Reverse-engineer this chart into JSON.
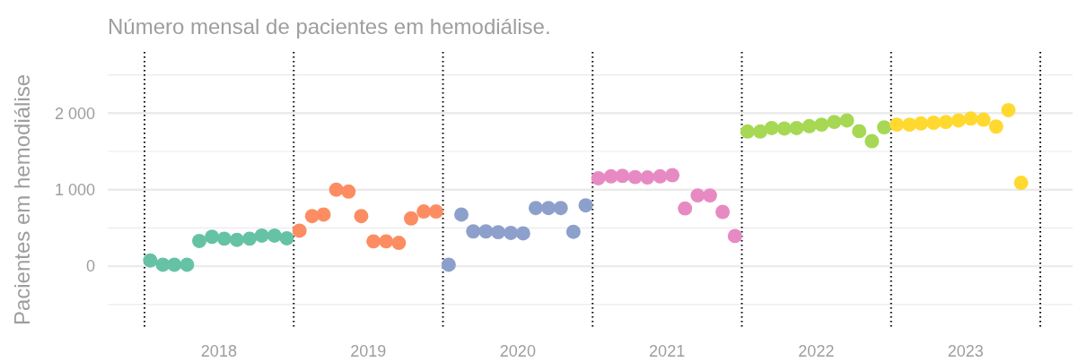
{
  "chart_data": {
    "type": "scatter",
    "title": "Número mensal de pacientes em hemodiálise.",
    "ylabel": "Pacientes em hemodiálise",
    "marker": "circle",
    "grid": "y",
    "xlim": [
      "2017-10-03",
      "2024-03-20"
    ],
    "ylim": [
      -830,
      2800
    ],
    "xticks": [
      {
        "value": "2018-07-02",
        "label": "2018"
      },
      {
        "value": "2019-07-02",
        "label": "2019"
      },
      {
        "value": "2020-07-02",
        "label": "2020"
      },
      {
        "value": "2021-07-02",
        "label": "2021"
      },
      {
        "value": "2022-07-02",
        "label": "2022"
      },
      {
        "value": "2023-07-02",
        "label": "2023"
      }
    ],
    "yticks": [
      {
        "value": -500,
        "label": null
      },
      0,
      {
        "value": 500,
        "label": null
      },
      {
        "value": 1000,
        "label": "1 000"
      },
      {
        "value": 1500,
        "label": null
      },
      {
        "value": 2000,
        "label": "2 000"
      },
      {
        "value": 2500,
        "label": null
      }
    ],
    "ref_lines": [
      {
        "axis": "x",
        "value": "2018-01-01",
        "color": "#000000",
        "line_style": "dotted"
      },
      {
        "axis": "x",
        "value": "2019-01-01",
        "color": "#000000",
        "line_style": "dotted"
      },
      {
        "axis": "x",
        "value": "2020-01-01",
        "color": "#000000",
        "line_style": "dotted"
      },
      {
        "axis": "x",
        "value": "2021-01-01",
        "color": "#000000",
        "line_style": "dotted"
      },
      {
        "axis": "x",
        "value": "2022-01-01",
        "color": "#000000",
        "line_style": "dotted"
      },
      {
        "axis": "x",
        "value": "2023-01-01",
        "color": "#000000",
        "line_style": "dotted"
      },
      {
        "axis": "x",
        "value": "2024-01-01",
        "color": "#000000",
        "line_style": "dotted"
      }
    ],
    "series": [
      {
        "color": "#66c2a5",
        "x": [
          "2018-01-15",
          "2018-02-15",
          "2018-03-15",
          "2018-04-15",
          "2018-05-15",
          "2018-06-15",
          "2018-07-15",
          "2018-08-15",
          "2018-09-15",
          "2018-10-15",
          "2018-11-15",
          "2018-12-15"
        ],
        "values": [
          75,
          20,
          20,
          20,
          330,
          385,
          360,
          345,
          360,
          400,
          400,
          365
        ]
      },
      {
        "color": "#fc8d62",
        "x": [
          "2019-01-15",
          "2019-02-15",
          "2019-03-15",
          "2019-04-15",
          "2019-05-15",
          "2019-06-15",
          "2019-07-15",
          "2019-08-15",
          "2019-09-15",
          "2019-10-15",
          "2019-11-15",
          "2019-12-15"
        ],
        "values": [
          465,
          655,
          675,
          1000,
          975,
          655,
          325,
          325,
          305,
          625,
          715,
          715
        ]
      },
      {
        "color": "#8da0cb",
        "x": [
          "2020-01-15",
          "2020-02-15",
          "2020-03-15",
          "2020-04-15",
          "2020-05-15",
          "2020-06-15",
          "2020-07-15",
          "2020-08-15",
          "2020-09-15",
          "2020-10-15",
          "2020-11-15",
          "2020-12-15"
        ],
        "values": [
          20,
          675,
          455,
          455,
          445,
          435,
          430,
          760,
          760,
          760,
          450,
          795
        ]
      },
      {
        "color": "#e78ac3",
        "x": [
          "2021-01-15",
          "2021-02-15",
          "2021-03-15",
          "2021-04-15",
          "2021-05-15",
          "2021-06-15",
          "2021-07-15",
          "2021-08-15",
          "2021-09-15",
          "2021-10-15",
          "2021-11-15",
          "2021-12-15"
        ],
        "values": [
          1150,
          1175,
          1180,
          1165,
          1160,
          1175,
          1190,
          755,
          925,
          925,
          710,
          395
        ]
      },
      {
        "color": "#a6d854",
        "x": [
          "2022-01-15",
          "2022-02-15",
          "2022-03-15",
          "2022-04-15",
          "2022-05-15",
          "2022-06-15",
          "2022-07-15",
          "2022-08-15",
          "2022-09-15",
          "2022-10-15",
          "2022-11-15",
          "2022-12-15"
        ],
        "values": [
          1760,
          1760,
          1805,
          1800,
          1805,
          1830,
          1850,
          1885,
          1905,
          1765,
          1635,
          1815
        ]
      },
      {
        "color": "#ffd92f",
        "x": [
          "2023-01-15",
          "2023-02-15",
          "2023-03-15",
          "2023-04-15",
          "2023-05-15",
          "2023-06-15",
          "2023-07-15",
          "2023-08-15",
          "2023-09-15",
          "2023-10-15",
          "2023-11-15"
        ],
        "values": [
          1850,
          1850,
          1865,
          1875,
          1885,
          1905,
          1930,
          1915,
          1825,
          2040,
          1090
        ]
      }
    ]
  }
}
